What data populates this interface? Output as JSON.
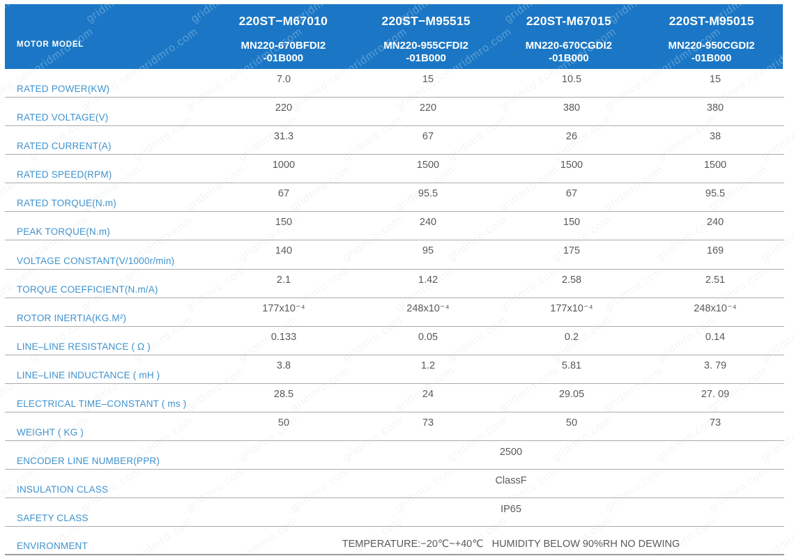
{
  "watermark": {
    "text": "gridmro.com"
  },
  "colors": {
    "header_bg": "#1b77c5",
    "header_text": "#ffffff",
    "label_text": "#3e92cd",
    "value_text": "#59595b",
    "row_line": "#ababab"
  },
  "header": {
    "row_label": "MOTOR MODEL",
    "models": [
      {
        "name": "220ST−M67010",
        "code_line1": "MN220-670BFDI2",
        "code_line2": "-01B000"
      },
      {
        "name": "220ST−M95515",
        "code_line1": "MN220-955CFDI2",
        "code_line2": "-01B000"
      },
      {
        "name": "220ST-M67015",
        "code_line1": "MN220-670CGDI2",
        "code_line2": "-01B000"
      },
      {
        "name": "220ST-M95015",
        "code_line1": "MN220-950CGDI2",
        "code_line2": "-01B000"
      }
    ]
  },
  "rows": [
    {
      "label": "RATED POWER(KW)",
      "values": [
        "7.0",
        "15",
        "10.5",
        "15"
      ]
    },
    {
      "label": "RATED VOLTAGE(V)",
      "values": [
        "220",
        "220",
        "380",
        "380"
      ]
    },
    {
      "label": "RATED CURRENT(A)",
      "values": [
        "31.3",
        "67",
        "26",
        "38"
      ]
    },
    {
      "label": "RATED SPEED(RPM)",
      "values": [
        "1000",
        "1500",
        "1500",
        "1500"
      ]
    },
    {
      "label": "RATED TORQUE(N.m)",
      "values": [
        "67",
        "95.5",
        "67",
        "95.5"
      ]
    },
    {
      "label": "PEAK TORQUE(N.m)",
      "values": [
        "150",
        "240",
        "150",
        "240"
      ]
    },
    {
      "label": "VOLTAGE CONSTANT(V/1000r/min)",
      "values": [
        "140",
        "95",
        "175",
        "169"
      ]
    },
    {
      "label": "TORQUE COEFFICIENT(N.m/A)",
      "values": [
        "2.1",
        "1.42",
        "2.58",
        "2.51"
      ]
    },
    {
      "label": "ROTOR INERTIA(KG.M²)",
      "values": [
        "177x10⁻⁴",
        "248x10⁻⁴",
        "177x10⁻⁴",
        "248x10⁻⁴"
      ]
    },
    {
      "label": "LINE–LINE RESISTANCE ( Ω )",
      "values": [
        "0.133",
        "0.05",
        "0.2",
        "0.14"
      ]
    },
    {
      "label": "LINE–LINE INDUCTANCE ( mH )",
      "values": [
        "3.8",
        "1.2",
        "5.81",
        "3. 79"
      ]
    },
    {
      "label": "ELECTRICAL TIME–CONSTANT ( ms )",
      "values": [
        "28.5",
        "24",
        "29.05",
        "27. 09"
      ]
    },
    {
      "label": "WEIGHT ( KG )",
      "values": [
        "50",
        "73",
        "50",
        "73"
      ]
    },
    {
      "label": "ENCODER LINE NUMBER(PPR)",
      "merged": "2500"
    },
    {
      "label": "INSULATION CLASS",
      "merged": "ClassF"
    },
    {
      "label": "SAFETY CLASS",
      "merged": "IP65"
    },
    {
      "label": "ENVIRONMENT",
      "merged": "TEMPERATURE:−20℃~+40℃   HUMIDITY BELOW 90%RH NO DEWING"
    }
  ]
}
